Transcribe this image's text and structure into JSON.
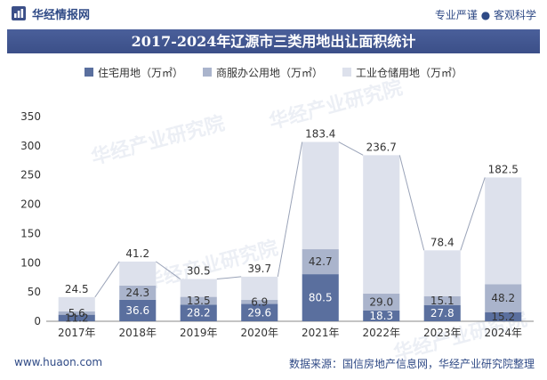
{
  "header": {
    "brand": "华经情报网",
    "slogan": "专业严谨 ● 客观科学"
  },
  "footer": {
    "website": "www.huaon.com",
    "source": "数据来源：国信房地产信息网，华经产业研究院整理"
  },
  "watermark": {
    "text": "华经产业研究院"
  },
  "colors": {
    "residential": "#5a6f9e",
    "commercial": "#aab4cc",
    "industrial": "#dde1ec",
    "header": "#3b4f88"
  },
  "chart_data": {
    "type": "bar",
    "stacked": true,
    "title": "2017-2024年辽源市三类用地出让面积统计",
    "categories": [
      "2017年",
      "2018年",
      "2019年",
      "2020年",
      "2021年",
      "2022年",
      "2023年",
      "2024年"
    ],
    "series": [
      {
        "name": "住宅用地（万㎡）",
        "values": [
          11.2,
          36.6,
          28.2,
          29.6,
          80.5,
          18.3,
          27.8,
          15.2
        ],
        "color": "#5a6f9e"
      },
      {
        "name": "商服办公用地（万㎡）",
        "values": [
          5.6,
          24.3,
          13.5,
          6.9,
          42.7,
          29.0,
          15.1,
          48.2
        ],
        "color": "#aab4cc"
      },
      {
        "name": "工业仓储用地（万㎡）",
        "values": [
          24.5,
          41.2,
          30.5,
          39.7,
          183.4,
          236.7,
          78.4,
          182.5
        ],
        "color": "#dde1ec"
      }
    ],
    "ylim": [
      0,
      350
    ],
    "yticks": [
      0,
      50,
      100,
      150,
      200,
      250,
      300,
      350
    ],
    "xlabel": "",
    "ylabel": "",
    "legend": "top"
  }
}
